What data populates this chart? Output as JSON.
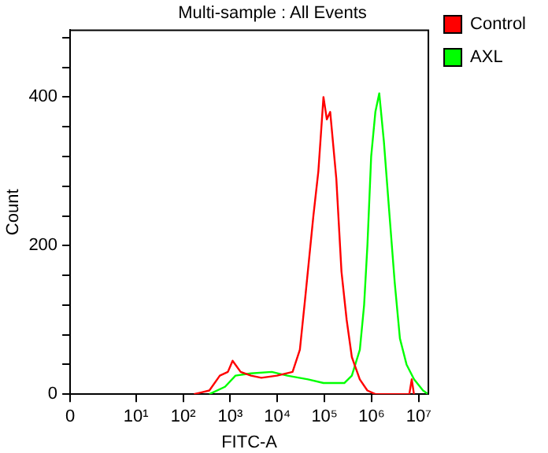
{
  "chart_data": {
    "type": "line",
    "title": "Multi-sample : All Events",
    "xlabel": "FITC-A",
    "ylabel": "Count",
    "log": "x",
    "grid": false,
    "legend": "top right",
    "marker": "none",
    "line_style": "solid",
    "xlim": [
      0.4,
      16000000
    ],
    "xticks": [
      {
        "value": 0.4,
        "label": "0"
      },
      {
        "value": 10,
        "label": "10¹"
      },
      {
        "value": 100,
        "label": "10²"
      },
      {
        "value": 1000,
        "label": "10³"
      },
      {
        "value": 10000,
        "label": "10⁴"
      },
      {
        "value": 100000,
        "label": "10⁵"
      },
      {
        "value": 1000000,
        "label": "10⁶"
      },
      {
        "value": 10000000,
        "label": "10⁷"
      }
    ],
    "ylim": [
      0,
      490
    ],
    "yticks": [
      0,
      {
        "value": 40,
        "label": null
      },
      {
        "value": 80,
        "label": null
      },
      {
        "value": 120,
        "label": null
      },
      {
        "value": 160,
        "label": null
      },
      200,
      {
        "value": 240,
        "label": null
      },
      {
        "value": 280,
        "label": null
      },
      {
        "value": 320,
        "label": null
      },
      {
        "value": 360,
        "label": null
      },
      400,
      {
        "value": 440,
        "label": null
      },
      {
        "value": 480,
        "label": null
      }
    ],
    "series": [
      {
        "name": "Control",
        "color": "#ff0000",
        "x": [
          170,
          360,
          600,
          890,
          1120,
          1660,
          2750,
          4570,
          9800,
          21000,
          30000,
          39000,
          58000,
          74000,
          95000,
          112000,
          132000,
          178000,
          229000,
          295000,
          380000,
          560000,
          810000,
          1200000,
          6300000,
          7100000,
          7900000
        ],
        "values": [
          0,
          5,
          25,
          30,
          45,
          30,
          25,
          22,
          25,
          30,
          60,
          130,
          240,
          300,
          400,
          370,
          380,
          290,
          165,
          100,
          50,
          20,
          5,
          0,
          0,
          20,
          0
        ]
      },
      {
        "name": "AXL",
        "color": "#00ff00",
        "x": [
          360,
          776,
          1290,
          2750,
          7600,
          16200,
          44700,
          95000,
          263000,
          380000,
          562000,
          692000,
          813000,
          977000,
          1200000,
          1450000,
          1820000,
          2400000,
          3090000,
          3980000,
          5500000,
          7940000,
          12300000,
          15800000
        ],
        "values": [
          0,
          10,
          25,
          28,
          30,
          25,
          20,
          15,
          15,
          25,
          60,
          120,
          200,
          320,
          380,
          405,
          340,
          240,
          150,
          75,
          40,
          20,
          5,
          0
        ]
      }
    ]
  }
}
